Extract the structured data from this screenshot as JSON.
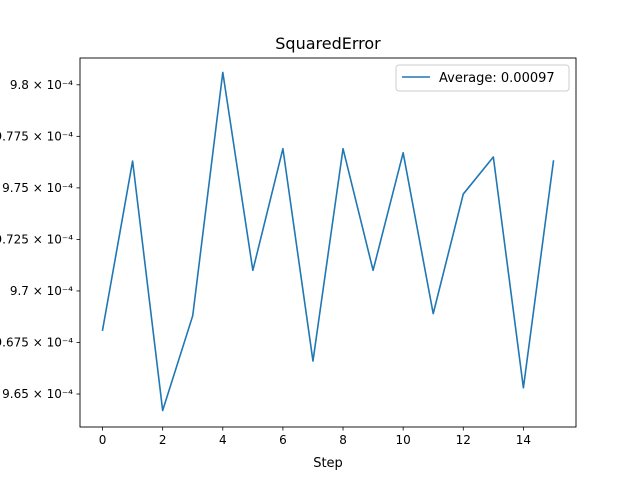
{
  "chart_data": {
    "type": "line",
    "title": "SquaredError",
    "xlabel": "Step",
    "ylabel": "",
    "x": [
      0,
      1,
      2,
      3,
      4,
      5,
      6,
      7,
      8,
      9,
      10,
      11,
      12,
      13,
      14,
      15
    ],
    "series": [
      {
        "name": "Average: 0.00097",
        "color": "#1f77b4",
        "values": [
          0.0009681,
          0.0009763,
          0.0009642,
          0.0009688,
          0.0009806,
          0.000971,
          0.0009769,
          0.0009666,
          0.0009769,
          0.000971,
          0.0009767,
          0.0009689,
          0.0009747,
          0.0009765,
          0.0009653,
          0.0009763
        ]
      }
    ],
    "xlim": [
      -0.75,
      15.75
    ],
    "ylim": [
      0.0009634,
      0.0009813
    ],
    "xticks": [
      0,
      2,
      4,
      6,
      8,
      10,
      12,
      14
    ],
    "xtick_labels": [
      "0",
      "2",
      "4",
      "6",
      "8",
      "10",
      "12",
      "14"
    ],
    "yticks": [
      0.000965,
      0.0009675,
      0.00097,
      0.0009725,
      0.000975,
      0.0009775,
      0.00098
    ],
    "ytick_labels": [
      "9.65 × 10⁻⁴",
      "9.675 × 10⁻⁴",
      "9.7 × 10⁻⁴",
      "9.725 × 10⁻⁴",
      "9.75 × 10⁻⁴",
      "9.775 × 10⁻⁴",
      "9.8 × 10⁻⁴"
    ],
    "legend_position": "upper right",
    "grid": false
  }
}
